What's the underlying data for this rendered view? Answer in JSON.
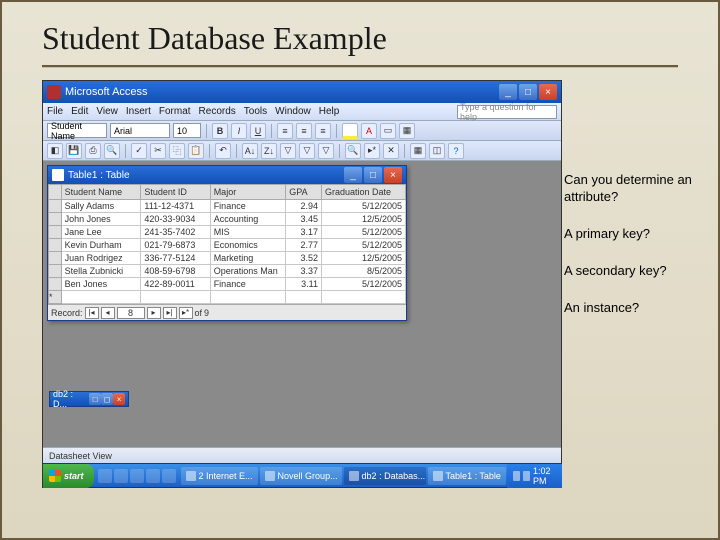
{
  "slide": {
    "title": "Student Database Example",
    "questions": [
      "Can you determine an attribute?",
      "A primary key?",
      "A secondary key?",
      "An instance?"
    ]
  },
  "access": {
    "app_title": "Microsoft Access",
    "menu": [
      "File",
      "Edit",
      "View",
      "Insert",
      "Format",
      "Records",
      "Tools",
      "Window",
      "Help"
    ],
    "help_placeholder": "Type a question for help",
    "font_label": "Student Name",
    "font_name": "Arial",
    "font_size": "10",
    "format_buttons": [
      "B",
      "I",
      "U"
    ],
    "status_text": "Datasheet View"
  },
  "table_window": {
    "title": "Table1 : Table",
    "columns": [
      "Student Name",
      "Student ID",
      "Major",
      "GPA",
      "Graduation Date"
    ],
    "col_widths": [
      "76px",
      "66px",
      "72px",
      "34px",
      "80px"
    ],
    "rows": [
      [
        "Sally Adams",
        "111-12-4371",
        "Finance",
        "2.94",
        "5/12/2005"
      ],
      [
        "John Jones",
        "420-33-9034",
        "Accounting",
        "3.45",
        "12/5/2005"
      ],
      [
        "Jane Lee",
        "241-35-7402",
        "MIS",
        "3.17",
        "5/12/2005"
      ],
      [
        "Kevin Durham",
        "021-79-6873",
        "Economics",
        "2.77",
        "5/12/2005"
      ],
      [
        "Juan Rodrigez",
        "336-77-5124",
        "Marketing",
        "3.52",
        "12/5/2005"
      ],
      [
        "Stella Zubnicki",
        "408-59-6798",
        "Operations Man",
        "3.37",
        "8/5/2005"
      ],
      [
        "Ben Jones",
        "422-89-0011",
        "Finance",
        "3.11",
        "5/12/2005"
      ]
    ],
    "record": {
      "label": "Record:",
      "current": "8",
      "of_label": "of",
      "total": "9"
    }
  },
  "db_min_window": {
    "title": "db2 : D..."
  },
  "taskbar": {
    "start": "start",
    "tasks": [
      {
        "label": "2 Internet E...",
        "active": false
      },
      {
        "label": "Novell Group...",
        "active": false
      },
      {
        "label": "db2 : Databas...",
        "active": true
      },
      {
        "label": "Table1 : Table",
        "active": false
      }
    ],
    "clock": "1:02 PM"
  }
}
